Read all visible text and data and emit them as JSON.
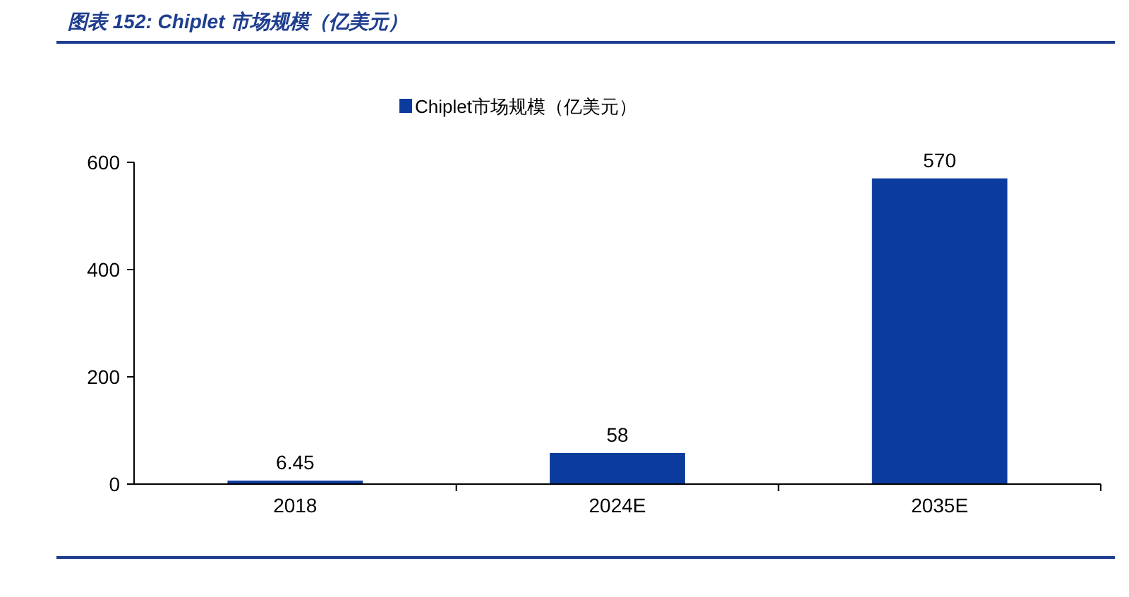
{
  "chart_data": {
    "type": "bar",
    "title": "图表 152:  Chiplet 市场规模（亿美元）",
    "categories": [
      "2018",
      "2024E",
      "2035E"
    ],
    "series": [
      {
        "name": "Chiplet市场规模（亿美元）",
        "color": "#0c3b9e",
        "values": [
          6.45,
          58,
          570
        ]
      }
    ],
    "ylim": [
      0,
      600
    ],
    "yticks": [
      0,
      200,
      400,
      600
    ],
    "data_labels": true,
    "legend": "top",
    "grid": false
  }
}
